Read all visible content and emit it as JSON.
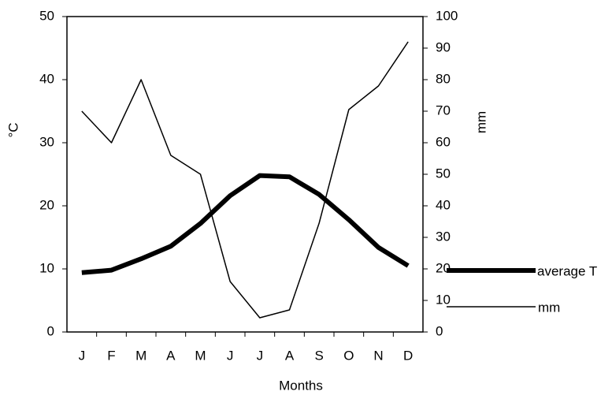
{
  "chart_data": {
    "type": "line",
    "x_label": "Months",
    "y_label": "°C",
    "y2_label": "mm",
    "categories": [
      "J",
      "F",
      "M",
      "A",
      "M",
      "J",
      "J",
      "A",
      "S",
      "O",
      "N",
      "D"
    ],
    "series": [
      {
        "name": "average T",
        "color": "#000000",
        "line_width": 6,
        "values": [
          9.4,
          9.8,
          11.6,
          13.6,
          17.2,
          21.6,
          24.8,
          24.6,
          21.8,
          17.8,
          13.4,
          10.5
        ]
      },
      {
        "name": "mm",
        "color": "#000000",
        "line_width": 1.5,
        "axis": "y2",
        "values": [
          70,
          60,
          80,
          56,
          50,
          16,
          4.5,
          7,
          34.5,
          70.5,
          78,
          92
        ]
      }
    ],
    "ylim": [
      0,
      50
    ],
    "yticks": [
      0,
      10,
      20,
      30,
      40,
      50
    ],
    "y2lim": [
      0,
      100
    ],
    "y2ticks": [
      0,
      10,
      20,
      30,
      40,
      50,
      60,
      70,
      80,
      90,
      100
    ],
    "grid": false,
    "legend": "right"
  }
}
